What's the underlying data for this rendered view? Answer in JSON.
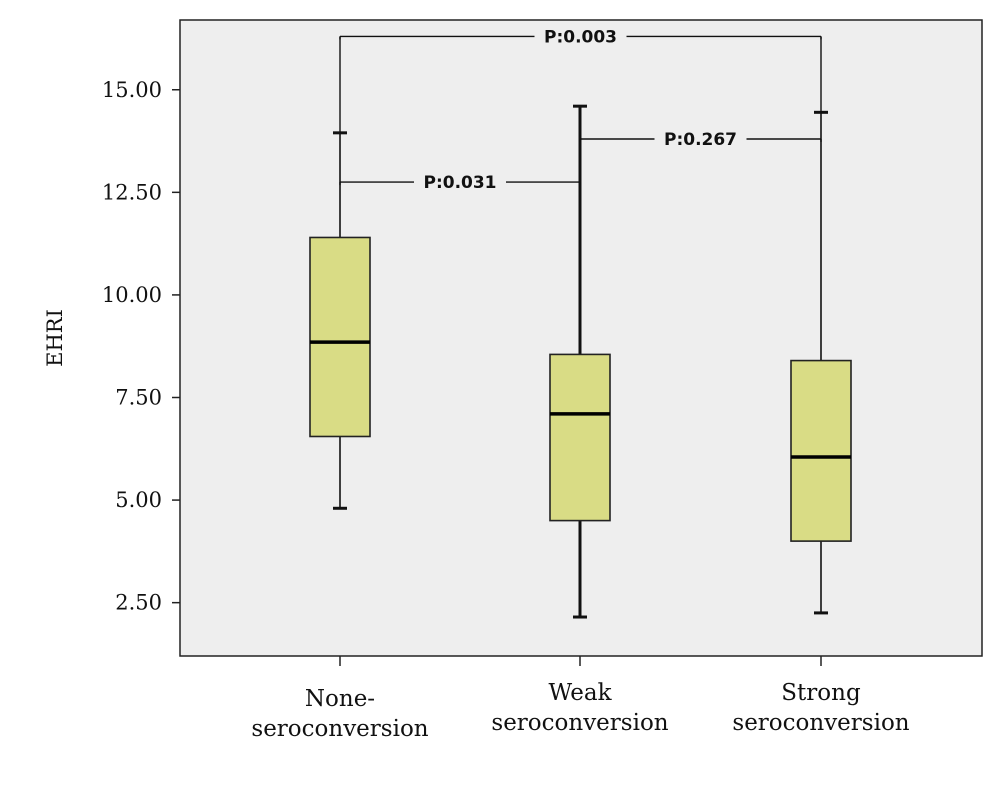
{
  "chart_data": {
    "type": "boxplot",
    "ylabel": "EHRI",
    "ylim": [
      1.2,
      16.7
    ],
    "yticks": [
      {
        "value": 2.5,
        "label": "2.50"
      },
      {
        "value": 5.0,
        "label": "5.00"
      },
      {
        "value": 7.5,
        "label": "7.50"
      },
      {
        "value": 10.0,
        "label": "10.00"
      },
      {
        "value": 12.5,
        "label": "12.50"
      },
      {
        "value": 15.0,
        "label": "15.00"
      }
    ],
    "categories": [
      {
        "lines": [
          "None-",
          "seroconversion"
        ]
      },
      {
        "lines": [
          "Weak",
          "seroconversion"
        ]
      },
      {
        "lines": [
          "Strong",
          "seroconversion"
        ]
      }
    ],
    "boxes": [
      {
        "whisker_low": 4.8,
        "q1": 6.55,
        "median": 8.85,
        "q3": 11.4,
        "whisker_high": 13.95
      },
      {
        "whisker_low": 2.15,
        "q1": 4.5,
        "median": 7.1,
        "q3": 8.55,
        "whisker_high": 14.6
      },
      {
        "whisker_low": 2.25,
        "q1": 4.0,
        "median": 6.05,
        "q3": 8.4,
        "whisker_high": 14.45
      }
    ],
    "comparisons": [
      {
        "from": 0,
        "to": 2,
        "label": "P:0.003",
        "y": 16.3
      },
      {
        "from": 1,
        "to": 2,
        "label": "P:0.267",
        "y": 13.8
      },
      {
        "from": 0,
        "to": 1,
        "label": "P:0.031",
        "y": 12.75
      }
    ],
    "box_color": "#d9dc85",
    "plot_background": "#eeeeee"
  }
}
